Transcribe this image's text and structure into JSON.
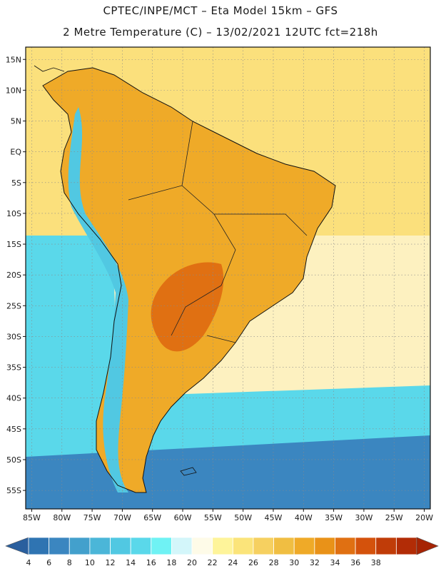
{
  "header": {
    "line1": "CPTEC/INPE/MCT –  Eta Model 15km – GFS",
    "line2": "2 Metre Temperature (C) – 13/02/2021 12UTC fct=218h"
  },
  "map": {
    "region": "South America",
    "lon_range": [
      -86,
      -19
    ],
    "lat_range": [
      -58,
      17
    ],
    "lat_labels": [
      "15N",
      "10N",
      "5N",
      "EQ",
      "5S",
      "10S",
      "15S",
      "20S",
      "25S",
      "30S",
      "35S",
      "40S",
      "45S",
      "50S",
      "55S"
    ],
    "lon_labels": [
      "85W",
      "80W",
      "75W",
      "70W",
      "65W",
      "60W",
      "55W",
      "50W",
      "45W",
      "40W",
      "35W",
      "30W",
      "25W",
      "20W"
    ]
  },
  "colorbar": {
    "levels": [
      "4",
      "6",
      "8",
      "10",
      "12",
      "14",
      "16",
      "18",
      "20",
      "22",
      "24",
      "26",
      "28",
      "30",
      "32",
      "34",
      "36",
      "38"
    ],
    "colors": [
      "#2f74b2",
      "#3b86c0",
      "#43a0cc",
      "#4bb6d8",
      "#51c8e2",
      "#5ad8ea",
      "#6ff2f4",
      "#d3f6fa",
      "#fefbe8",
      "#fef49a",
      "#fbe47a",
      "#f6d060",
      "#f0be42",
      "#efaa28",
      "#e99218",
      "#e07012",
      "#d4520c",
      "#c03c08",
      "#b22c06"
    ],
    "low_arrow_color": "#2a5f9e",
    "high_arrow_color": "#a62404"
  },
  "colors": {
    "ocean_tropical": "#fbe07c",
    "ocean_subtropical": "#fdf1c0",
    "ocean_cool": "#5ad8ea",
    "ocean_cold": "#3b86c0",
    "land_hot": "#efaa28",
    "andes": "#51c8e2"
  }
}
